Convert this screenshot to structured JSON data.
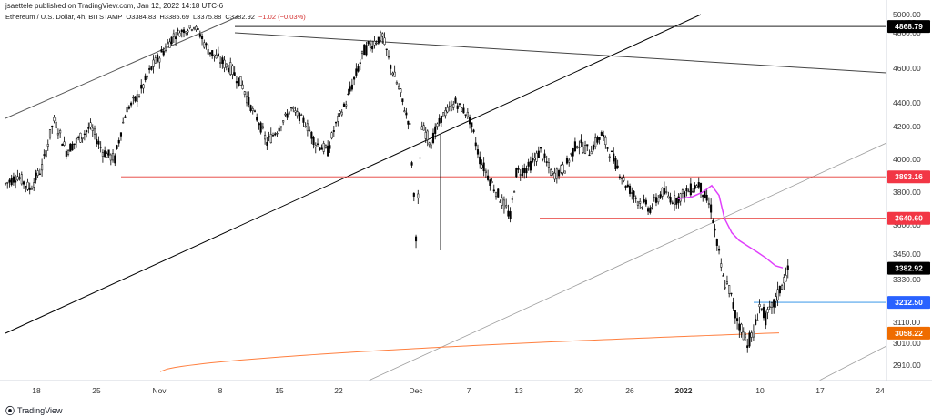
{
  "header": {
    "publisher": "jsaettele published on TradingView.com, Jan 12, 2022 14:18 UTC-6"
  },
  "symbol": {
    "name": "Ethereum / U.S. Dollar, 4h, BITSTAMP",
    "open": "O3384.83",
    "high": "H3385.69",
    "low": "L3375.88",
    "close": "C3382.92",
    "change": "−1.02 (−0.03%)"
  },
  "footer": {
    "brand": "TradingView"
  },
  "colors": {
    "candle": "#000000",
    "resistance_line": "#e53935",
    "support_line": "#1e88e5",
    "moving_average": "#e040fb",
    "vwap_line": "#ff7f3f",
    "trendline": "#000000",
    "channel_line": "#9e9e9e",
    "last_price_bg": "#000000",
    "red_label_bg": "#f23645",
    "blue_label_bg": "#2962ff",
    "orange_label_bg": "#ef6c00"
  },
  "chart_data": {
    "type": "candlestick",
    "y_axis_unit": "USD",
    "y_ticks": [
      "5000.00",
      "4800.00",
      "4600.00",
      "4400.00",
      "4200.00",
      "4000.00",
      "3800.00",
      "3600.00",
      "3450.00",
      "3330.00",
      "3110.00",
      "3010.00",
      "2910.00"
    ],
    "x_ticks": [
      "18",
      "25",
      "Nov",
      "8",
      "15",
      "22",
      "Dec",
      "7",
      "13",
      "20",
      "26",
      "2022",
      "10",
      "17",
      "24"
    ],
    "price_labels": [
      {
        "value": "4868.79",
        "style": "black"
      },
      {
        "value": "3893.16",
        "style": "red"
      },
      {
        "value": "3640.60",
        "style": "red"
      },
      {
        "value": "3382.92",
        "style": "last"
      },
      {
        "value": "3212.50",
        "style": "blue"
      },
      {
        "value": "3058.22",
        "style": "orange"
      }
    ],
    "horizontal_levels": [
      {
        "price": 4868.79,
        "from_date": "Nov 10"
      },
      {
        "price": 3893.16,
        "from_date": "Oct 26"
      },
      {
        "price": 3640.6,
        "from_date": "Dec 14"
      },
      {
        "price": 3212.5,
        "from_date": "Jan 10"
      }
    ],
    "approx_price_path": [
      [
        0,
        3850
      ],
      [
        4,
        3900
      ],
      [
        8,
        3820
      ],
      [
        12,
        3950
      ],
      [
        16,
        4250
      ],
      [
        20,
        4050
      ],
      [
        24,
        4120
      ],
      [
        28,
        4200
      ],
      [
        32,
        4050
      ],
      [
        36,
        4000
      ],
      [
        40,
        4350
      ],
      [
        44,
        4450
      ],
      [
        48,
        4600
      ],
      [
        52,
        4700
      ],
      [
        56,
        4800
      ],
      [
        60,
        4840
      ],
      [
        62,
        4870
      ],
      [
        66,
        4720
      ],
      [
        70,
        4650
      ],
      [
        74,
        4600
      ],
      [
        78,
        4500
      ],
      [
        82,
        4300
      ],
      [
        86,
        4100
      ],
      [
        90,
        4200
      ],
      [
        94,
        4350
      ],
      [
        98,
        4250
      ],
      [
        102,
        4100
      ],
      [
        106,
        4050
      ],
      [
        110,
        4300
      ],
      [
        114,
        4500
      ],
      [
        118,
        4700
      ],
      [
        122,
        4760
      ],
      [
        124,
        4780
      ],
      [
        126,
        4650
      ],
      [
        130,
        4450
      ],
      [
        133,
        4200
      ],
      [
        135,
        3550
      ],
      [
        137,
        4200
      ],
      [
        140,
        4100
      ],
      [
        144,
        4300
      ],
      [
        148,
        4400
      ],
      [
        152,
        4300
      ],
      [
        156,
        4000
      ],
      [
        160,
        3850
      ],
      [
        164,
        3720
      ],
      [
        166,
        3650
      ],
      [
        168,
        3920
      ],
      [
        172,
        3950
      ],
      [
        176,
        4050
      ],
      [
        180,
        3900
      ],
      [
        184,
        3950
      ],
      [
        188,
        4100
      ],
      [
        192,
        4050
      ],
      [
        196,
        4150
      ],
      [
        200,
        4000
      ],
      [
        204,
        3850
      ],
      [
        208,
        3750
      ],
      [
        212,
        3700
      ],
      [
        216,
        3800
      ],
      [
        220,
        3750
      ],
      [
        224,
        3800
      ],
      [
        228,
        3850
      ],
      [
        232,
        3700
      ],
      [
        234,
        3500
      ],
      [
        236,
        3330
      ],
      [
        238,
        3280
      ],
      [
        240,
        3150
      ],
      [
        242,
        3080
      ],
      [
        244,
        3020
      ],
      [
        246,
        3050
      ],
      [
        248,
        3200
      ],
      [
        250,
        3130
      ],
      [
        252,
        3180
      ],
      [
        254,
        3250
      ],
      [
        256,
        3330
      ],
      [
        258,
        3383
      ]
    ]
  }
}
